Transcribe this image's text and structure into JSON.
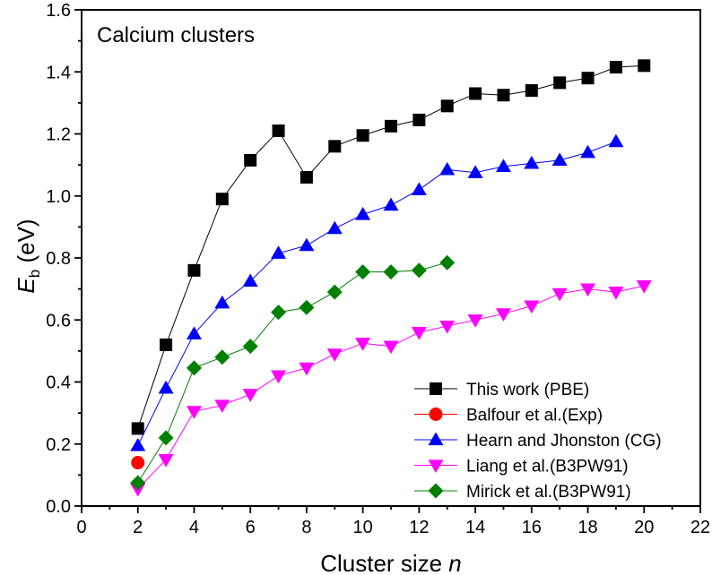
{
  "chart_data": {
    "type": "line",
    "title": "",
    "annotation": "Calcium clusters",
    "xlabel": "Cluster size",
    "xlabel_var": "n",
    "ylabel_main": "E",
    "ylabel_sub": "b",
    "ylabel_unit": " (eV)",
    "xlim": [
      0,
      22
    ],
    "ylim": [
      0,
      1.6
    ],
    "xticks": [
      "0",
      "2",
      "4",
      "6",
      "8",
      "10",
      "12",
      "14",
      "16",
      "18",
      "20",
      "22"
    ],
    "yticks": [
      "0.0",
      "0.2",
      "0.4",
      "0.6",
      "0.8",
      "1.0",
      "1.2",
      "1.4",
      "1.6"
    ],
    "grid": false,
    "legend_position": "bottom-right",
    "series": [
      {
        "name": "This work (PBE)",
        "color": "#000000",
        "marker": "square",
        "x": [
          2,
          3,
          4,
          5,
          6,
          7,
          8,
          9,
          10,
          11,
          12,
          13,
          14,
          15,
          16,
          17,
          18,
          19,
          20
        ],
        "y": [
          0.25,
          0.52,
          0.76,
          0.99,
          1.115,
          1.21,
          1.06,
          1.16,
          1.195,
          1.225,
          1.245,
          1.29,
          1.33,
          1.325,
          1.34,
          1.365,
          1.38,
          1.415,
          1.42
        ]
      },
      {
        "name": "Balfour et al.(Exp)",
        "color": "#ff0000",
        "marker": "circle",
        "x": [
          2
        ],
        "y": [
          0.14
        ]
      },
      {
        "name": "Hearn and Jhonston (CG)",
        "color": "#0000ff",
        "marker": "triangle-up",
        "x": [
          2,
          3,
          4,
          5,
          6,
          7,
          8,
          9,
          10,
          11,
          12,
          13,
          14,
          15,
          16,
          17,
          18,
          19
        ],
        "y": [
          0.195,
          0.38,
          0.555,
          0.655,
          0.725,
          0.815,
          0.84,
          0.895,
          0.94,
          0.97,
          1.02,
          1.085,
          1.075,
          1.095,
          1.105,
          1.115,
          1.14,
          1.175
        ]
      },
      {
        "name": "Liang et al.(B3PW91)",
        "color": "#ff00ff",
        "marker": "triangle-down",
        "x": [
          2,
          3,
          4,
          5,
          6,
          7,
          8,
          9,
          10,
          11,
          12,
          13,
          14,
          15,
          16,
          17,
          18,
          19,
          20
        ],
        "y": [
          0.055,
          0.15,
          0.305,
          0.325,
          0.36,
          0.42,
          0.445,
          0.49,
          0.525,
          0.515,
          0.56,
          0.58,
          0.6,
          0.62,
          0.645,
          0.685,
          0.7,
          0.69,
          0.71
        ]
      },
      {
        "name": "Mirick et al.(B3PW91)",
        "color": "#008000",
        "marker": "diamond",
        "x": [
          2,
          3,
          4,
          5,
          6,
          7,
          8,
          9,
          10,
          11,
          12,
          13
        ],
        "y": [
          0.075,
          0.22,
          0.445,
          0.48,
          0.515,
          0.625,
          0.64,
          0.69,
          0.755,
          0.755,
          0.76,
          0.785
        ]
      }
    ]
  }
}
